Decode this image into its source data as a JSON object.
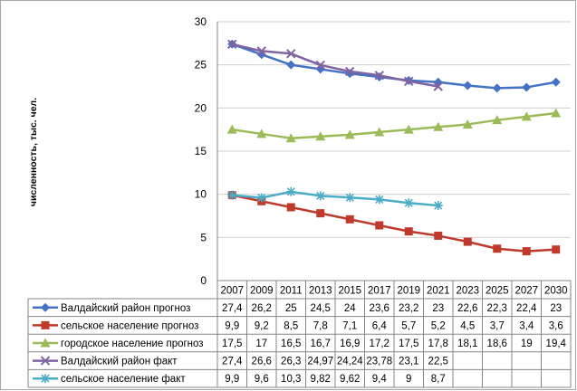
{
  "chart_data": {
    "type": "line",
    "title": "",
    "xlabel": "",
    "ylabel": "численность, тыс. чел.",
    "ylim": [
      0,
      30
    ],
    "yticks": [
      0,
      5,
      10,
      15,
      20,
      25,
      30
    ],
    "grid": "horizontal",
    "legend": "data-table",
    "categories": [
      "2007",
      "2009",
      "2011",
      "2013",
      "2015",
      "2017",
      "2019",
      "2021",
      "2023",
      "2025",
      "2027",
      "2030"
    ],
    "series": [
      {
        "name": "Валдайский район прогноз",
        "color": "#4472C4",
        "marker": "diamond",
        "values": [
          27.4,
          26.2,
          25,
          24.5,
          24,
          23.6,
          23.2,
          23,
          22.6,
          22.3,
          22.4,
          23
        ],
        "labels": [
          "27,4",
          "26,2",
          "25",
          "24,5",
          "24",
          "23,6",
          "23,2",
          "23",
          "22,6",
          "22,3",
          "22,4",
          "23"
        ]
      },
      {
        "name": "сельское население прогноз",
        "color": "#C0392B",
        "marker": "square",
        "values": [
          9.9,
          9.2,
          8.5,
          7.8,
          7.1,
          6.4,
          5.7,
          5.2,
          4.5,
          3.7,
          3.4,
          3.6
        ],
        "labels": [
          "9,9",
          "9,2",
          "8,5",
          "7,8",
          "7,1",
          "6,4",
          "5,7",
          "5,2",
          "4,5",
          "3,7",
          "3,4",
          "3,6"
        ]
      },
      {
        "name": "городское население прогноз",
        "color": "#9BBB59",
        "marker": "triangle",
        "values": [
          17.5,
          17,
          16.5,
          16.7,
          16.9,
          17.2,
          17.5,
          17.8,
          18.1,
          18.6,
          19,
          19.4
        ],
        "labels": [
          "17,5",
          "17",
          "16,5",
          "16,7",
          "16,9",
          "17,2",
          "17,5",
          "17,8",
          "18,1",
          "18,6",
          "19",
          "19,4"
        ]
      },
      {
        "name": "Валдайский район факт",
        "color": "#8064A2",
        "marker": "x",
        "values": [
          27.4,
          26.6,
          26.3,
          24.97,
          24.24,
          23.78,
          23.1,
          22.5,
          null,
          null,
          null,
          null
        ],
        "labels": [
          "27,4",
          "26,6",
          "26,3",
          "24,97",
          "24,24",
          "23,78",
          "23,1",
          "22,5",
          "",
          "",
          "",
          ""
        ]
      },
      {
        "name": "сельское население факт",
        "color": "#4BACC6",
        "marker": "star",
        "values": [
          9.9,
          9.6,
          10.3,
          9.82,
          9.62,
          9.4,
          9,
          8.7,
          null,
          null,
          null,
          null
        ],
        "labels": [
          "9,9",
          "9,6",
          "10,3",
          "9,82",
          "9,62",
          "9,4",
          "9",
          "8,7",
          "",
          "",
          "",
          ""
        ]
      }
    ]
  }
}
